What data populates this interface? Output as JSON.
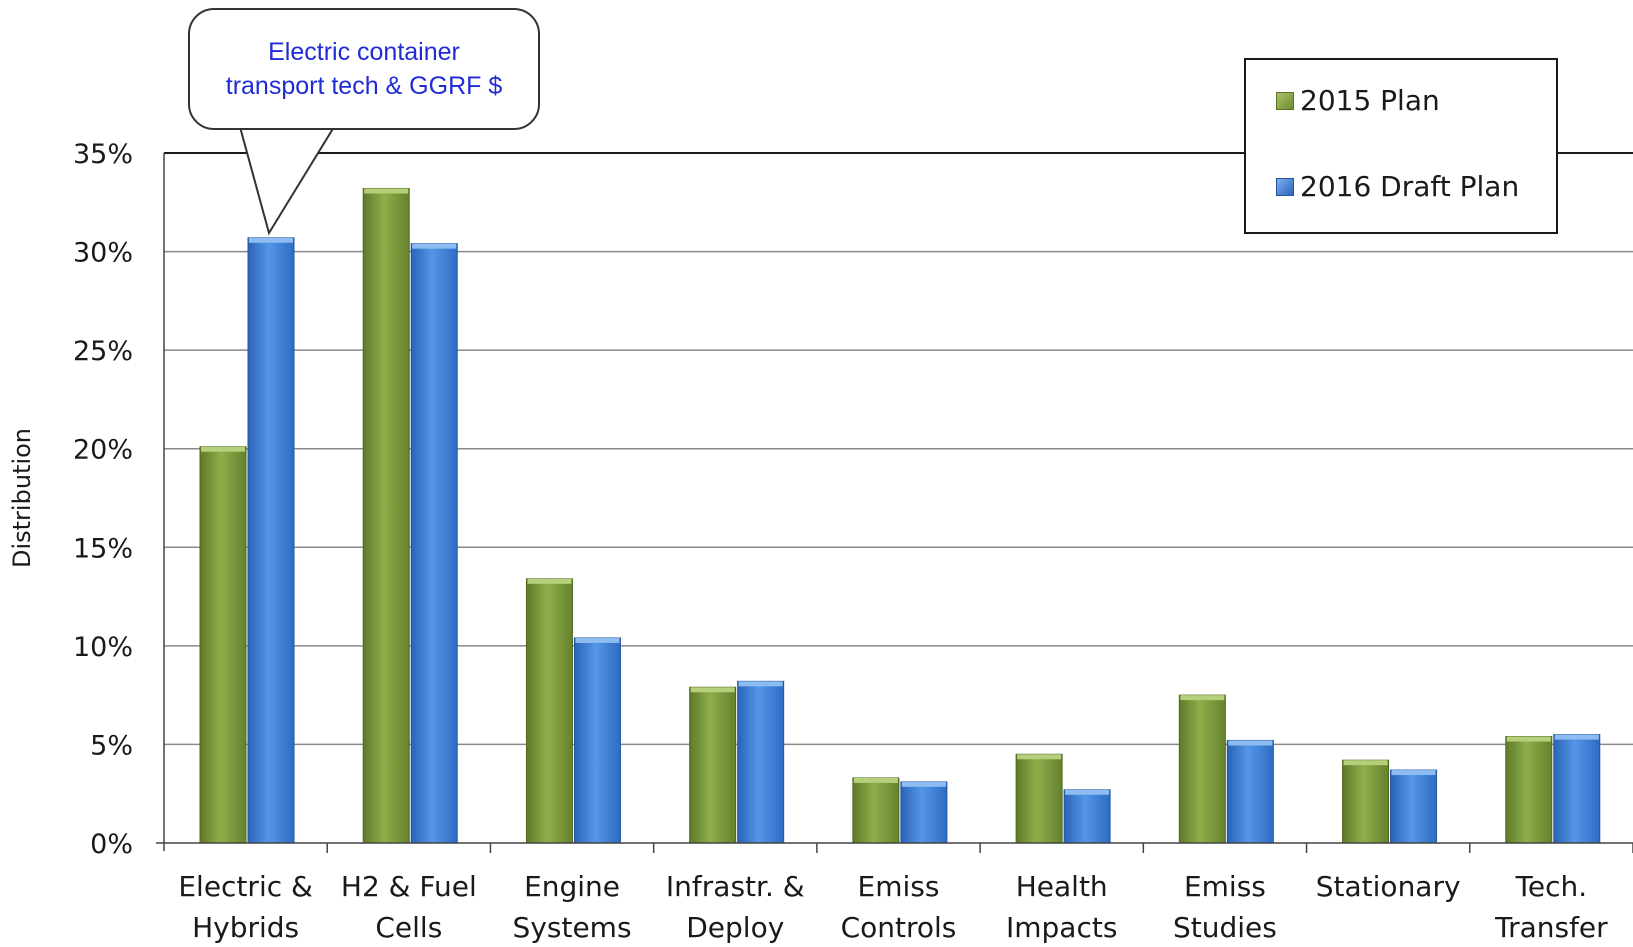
{
  "chart_data": {
    "type": "bar",
    "title": "",
    "xlabel": "",
    "ylabel": "Distribution",
    "ylim": [
      0,
      35
    ],
    "yticks": [
      "0%",
      "5%",
      "10%",
      "15%",
      "20%",
      "25%",
      "30%",
      "35%"
    ],
    "categories": [
      [
        "Electric &",
        "Hybrids"
      ],
      [
        "H2 & Fuel",
        "Cells"
      ],
      [
        "Engine",
        "Systems"
      ],
      [
        "Infrastr. &",
        "Deploy"
      ],
      [
        "Emiss",
        "Controls"
      ],
      [
        "Health",
        "Impacts"
      ],
      [
        "Emiss",
        "Studies"
      ],
      [
        "Stationary"
      ],
      [
        "Tech.",
        "Transfer"
      ]
    ],
    "series": [
      {
        "name": "2015 Plan",
        "color": "#79953a",
        "values": [
          20.1,
          33.2,
          13.4,
          7.9,
          3.3,
          4.5,
          7.5,
          4.2,
          5.4
        ]
      },
      {
        "name": "2016 Draft Plan",
        "color": "#3b7dd6",
        "values": [
          30.7,
          30.4,
          10.4,
          8.2,
          3.1,
          2.7,
          5.2,
          3.7,
          5.5
        ]
      }
    ],
    "grid": true,
    "legend_position": "top-right"
  },
  "annotation": {
    "lines": [
      "Electric container",
      "transport tech & GGRF $"
    ],
    "points_to": {
      "category_index": 0,
      "series_index": 1
    }
  }
}
